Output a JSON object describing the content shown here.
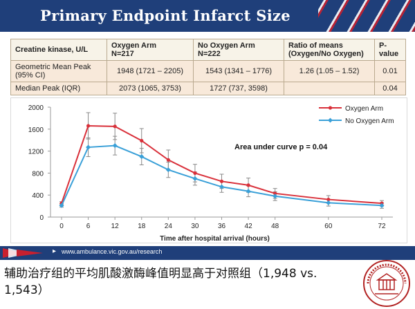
{
  "header": {
    "title": "Primary Endpoint Infarct Size"
  },
  "table": {
    "headers": [
      "Creatine kinase, U/L",
      "Oxygen Arm\nN=217",
      "No Oxygen Arm\nN=222",
      "Ratio of means\n(Oxygen/No Oxygen)",
      "P-value"
    ],
    "rows": [
      [
        "Geometric Mean Peak\n(95% CI)",
        "1948 (1721 – 2205)",
        "1543 (1341 – 1776)",
        "1.26 (1.05 – 1.52)",
        "0.01"
      ],
      [
        "Median Peak (IQR)",
        "2073 (1065, 3753)",
        "1727 (737, 3598)",
        "",
        "0.04"
      ]
    ]
  },
  "chart_data": {
    "type": "line",
    "x": [
      0,
      6,
      12,
      18,
      24,
      30,
      36,
      42,
      48,
      60,
      72
    ],
    "series": [
      {
        "name": "Oxygen Arm",
        "color": "#d9303a",
        "values": [
          250,
          1660,
          1650,
          1390,
          1040,
          800,
          650,
          580,
          430,
          320,
          250
        ],
        "err": [
          30,
          240,
          240,
          220,
          180,
          160,
          130,
          130,
          90,
          70,
          50
        ]
      },
      {
        "name": "No Oxygen Arm",
        "color": "#3aa0d8",
        "values": [
          210,
          1270,
          1300,
          1100,
          860,
          700,
          550,
          470,
          380,
          260,
          210
        ],
        "err": [
          30,
          170,
          170,
          150,
          140,
          120,
          100,
          100,
          80,
          60,
          50
        ]
      }
    ],
    "xlabel": "Time after hospital arrival (hours)",
    "ylabel": "",
    "ylim": [
      0,
      2000
    ],
    "yticks": [
      0,
      400,
      800,
      1200,
      1600,
      2000
    ],
    "annotation": "Area under curve p = 0.04",
    "legend_position": "top-right",
    "grid": false
  },
  "footer": {
    "url": "www.ambulance.vic.gov.au/research"
  },
  "caption": "辅助治疗组的平均肌酸激酶峰值明显高于对照组（1,948 vs. 1,543）",
  "colors": {
    "header_bg": "#1f3f7a",
    "accent_red": "#c8202f",
    "seal": "#b22222"
  }
}
